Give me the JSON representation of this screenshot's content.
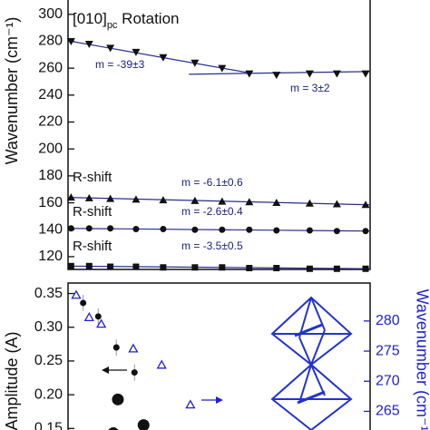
{
  "chart_data": [
    {
      "type": "scatter",
      "ylabel": "Wavenumber (cm⁻¹)",
      "title": "[010]",
      "title_sub": "pc",
      "title_rest": " Rotation",
      "xlim": [
        0,
        100
      ],
      "ylim": [
        110.5,
        312
      ],
      "yticks": [
        120,
        140,
        160,
        180,
        200,
        220,
        240,
        260,
        280,
        300
      ],
      "x": [
        1,
        7,
        14,
        22.5,
        31.5,
        42,
        51,
        60,
        69,
        80,
        89,
        98.5
      ],
      "series": [
        {
          "marker": "triangle-down",
          "color": "#111111",
          "values": [
            280,
            278,
            275,
            272,
            268,
            264,
            260,
            256,
            255,
            256,
            256,
            256
          ]
        },
        {
          "marker": "triangle-up",
          "color": "#111111",
          "values": [
            164,
            163.5,
            163,
            162.5,
            162,
            161.5,
            161,
            160.5,
            160,
            159.5,
            159,
            158.5
          ]
        },
        {
          "marker": "circle",
          "color": "#111111",
          "values": [
            141,
            141,
            141,
            140.5,
            140.5,
            140,
            140,
            140,
            139.5,
            139.5,
            139,
            139
          ]
        },
        {
          "marker": "square",
          "color": "#111111",
          "values": [
            113,
            113,
            112.5,
            112.5,
            112,
            112,
            112,
            111.5,
            111.5,
            111,
            111,
            111
          ]
        }
      ],
      "fits": [
        {
          "x": [
            1,
            60
          ],
          "y": [
            280,
            256.5
          ]
        },
        {
          "x": [
            40,
            100
          ],
          "y": [
            255.5,
            257.5
          ]
        },
        {
          "x": [
            0,
            100
          ],
          "y": [
            164,
            158.5
          ]
        },
        {
          "x": [
            0,
            100
          ],
          "y": [
            141,
            139
          ]
        },
        {
          "x": [
            0,
            100
          ],
          "y": [
            113,
            111
          ]
        }
      ],
      "fit_color": "#2b2f8f",
      "annotations": [
        "m = -39±3",
        "m = 3±2",
        "R-shift",
        "m = -6.1±0.6",
        "R-shift",
        "m = -2.6±0.4",
        "R-shift",
        "m = -3.5±0.5"
      ]
    },
    {
      "type": "scatter",
      "ylabel": "Amplitude (A)",
      "y2label": "Wavenumber (cm⁻¹)",
      "xlim": [
        0,
        100
      ],
      "ylim": [
        0.137,
        0.3655
      ],
      "y2lim": [
        260.7,
        286.3
      ],
      "yticks": [
        0.15,
        {
          "value": 0.2,
          "label": "0.20"
        },
        0.25,
        {
          "value": 0.3,
          "label": "0.30"
        },
        0.35
      ],
      "y2ticks": [
        265,
        270,
        275,
        280
      ],
      "y2color": "#2222cc",
      "series": [
        {
          "marker": "circle",
          "color": "#111111",
          "x": [
            5,
            10,
            16,
            22
          ],
          "values": [
            0.336,
            0.316,
            0.27,
            0.233
          ],
          "errors": [
            0.012,
            0.012,
            0.012,
            0.012
          ]
        },
        {
          "marker": "big-circle",
          "color": "#111111",
          "x": [
            16.5,
            15,
            25
          ],
          "values": [
            0.193,
            0.143,
            0.155
          ]
        },
        {
          "marker": "triangle-open",
          "color": "#2222cc",
          "axis": "y2",
          "x": [
            2.7,
            7,
            11,
            21.6,
            31,
            40.5
          ],
          "values": [
            284.3,
            280.6,
            279.5,
            275.4,
            272.7,
            266.1
          ]
        }
      ]
    }
  ]
}
